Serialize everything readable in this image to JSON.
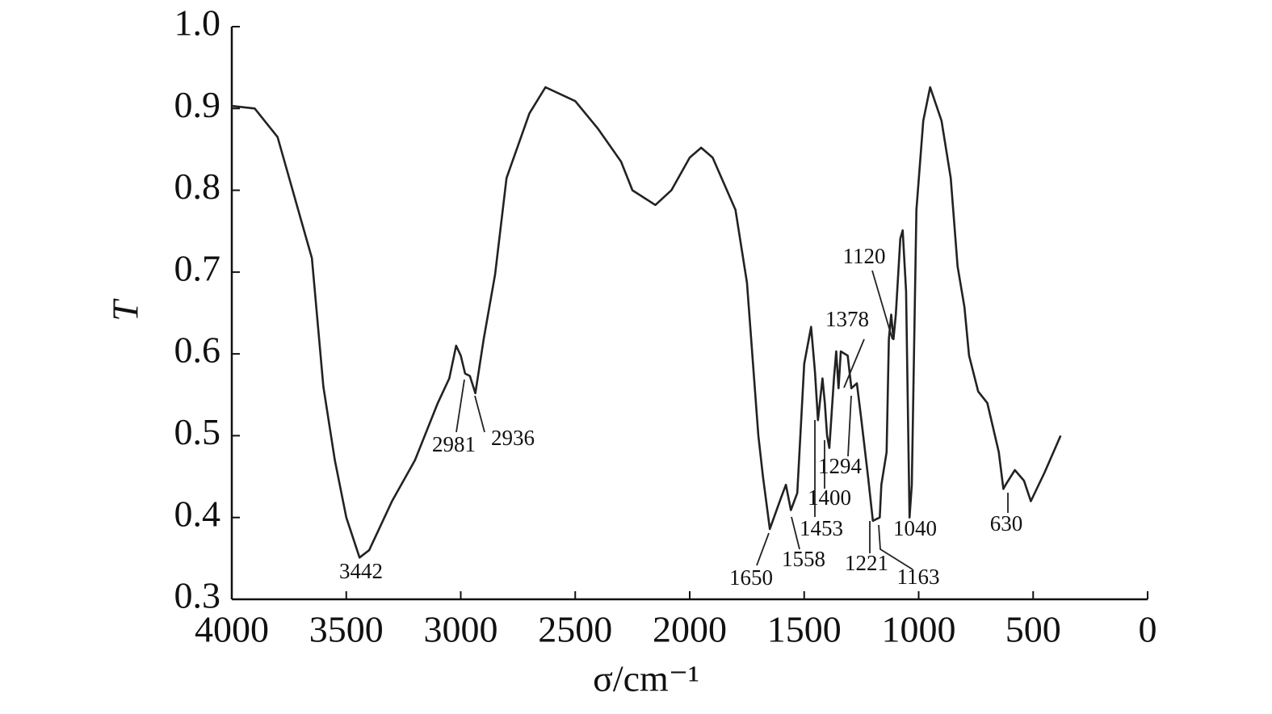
{
  "chart_data": {
    "type": "line",
    "xlabel": "σ/cm⁻¹",
    "ylabel": "T",
    "xlim": [
      4000,
      0
    ],
    "ylim": [
      0.3,
      1.0
    ],
    "xticks": [
      4000,
      3500,
      3000,
      2500,
      2000,
      1500,
      1000,
      500,
      0
    ],
    "yticks": [
      0.3,
      0.4,
      0.5,
      0.6,
      0.7,
      0.8,
      0.9,
      {
        "value": 1.0,
        "label": "1.0"
      }
    ],
    "color": "#222222",
    "series": [
      {
        "name": "T",
        "x": [
          4000,
          3900,
          3800,
          3700,
          3650,
          3600,
          3550,
          3500,
          3442,
          3400,
          3300,
          3200,
          3100,
          3050,
          3020,
          3000,
          2981,
          2960,
          2936,
          2900,
          2850,
          2800,
          2700,
          2630,
          2500,
          2400,
          2300,
          2250,
          2150,
          2080,
          2000,
          1950,
          1900,
          1800,
          1750,
          1700,
          1680,
          1650,
          1600,
          1580,
          1558,
          1530,
          1500,
          1470,
          1453,
          1440,
          1420,
          1410,
          1400,
          1390,
          1370,
          1360,
          1350,
          1340,
          1310,
          1294,
          1270,
          1250,
          1221,
          1200,
          1170,
          1163,
          1140,
          1130,
          1120,
          1110,
          1100,
          1080,
          1070,
          1055,
          1040,
          1030,
          1010,
          980,
          950,
          900,
          860,
          830,
          800,
          780,
          740,
          700,
          650,
          630,
          620,
          580,
          540,
          510,
          450,
          380
        ],
        "values": [
          0.903,
          0.9,
          0.865,
          0.766,
          0.717,
          0.56,
          0.47,
          0.4,
          0.351,
          0.36,
          0.42,
          0.47,
          0.54,
          0.57,
          0.61,
          0.598,
          0.576,
          0.573,
          0.552,
          0.618,
          0.697,
          0.815,
          0.894,
          0.926,
          0.909,
          0.875,
          0.835,
          0.8,
          0.782,
          0.8,
          0.84,
          0.852,
          0.84,
          0.776,
          0.687,
          0.5,
          0.45,
          0.386,
          0.425,
          0.44,
          0.409,
          0.43,
          0.588,
          0.633,
          0.578,
          0.519,
          0.57,
          0.54,
          0.5,
          0.485,
          0.57,
          0.603,
          0.558,
          0.603,
          0.598,
          0.558,
          0.564,
          0.519,
          0.45,
          0.396,
          0.4,
          0.44,
          0.48,
          0.618,
          0.648,
          0.618,
          0.648,
          0.741,
          0.751,
          0.677,
          0.4,
          0.44,
          0.776,
          0.885,
          0.926,
          0.885,
          0.815,
          0.707,
          0.657,
          0.598,
          0.554,
          0.54,
          0.48,
          0.435,
          0.44,
          0.458,
          0.445,
          0.42,
          0.455,
          0.5
        ]
      }
    ],
    "peak_labels": [
      3442,
      2981,
      2936,
      1650,
      1558,
      1453,
      1400,
      1294,
      1378,
      1120,
      1221,
      1163,
      1040,
      630
    ]
  }
}
